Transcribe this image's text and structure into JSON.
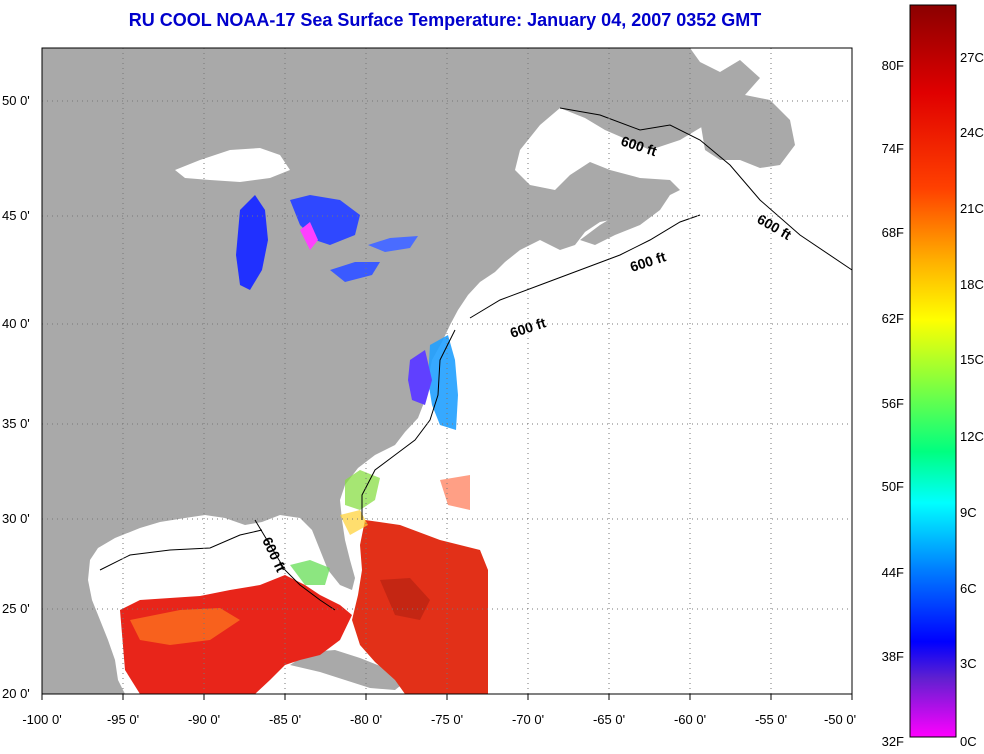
{
  "title": "RU COOL  NOAA-17  Sea Surface Temperature:  January 04, 2007 0352 GMT",
  "lat_labels": [
    "50 0'",
    "45 0'",
    "40 0'",
    "35 0'",
    "30 0'",
    "25 0'",
    "20 0'"
  ],
  "lon_labels": [
    "-100 0'",
    "-95 0'",
    "-90 0'",
    "-85 0'",
    "-80 0'",
    "-75 0'",
    "-70 0'",
    "-65 0'",
    "-60 0'",
    "-55 0'",
    "-50 0'"
  ],
  "contour_labels": [
    "600 ft",
    "600 ft",
    "600 ft",
    "600 ft",
    "600 ft"
  ],
  "colorbar": {
    "fahrenheit": [
      "80F",
      "74F",
      "68F",
      "62F",
      "56F",
      "50F",
      "44F",
      "38F",
      "32F"
    ],
    "celsius": [
      "27C",
      "24C",
      "21C",
      "18C",
      "15C",
      "12C",
      "9C",
      "6C",
      "3C",
      "0C"
    ]
  },
  "colors": {
    "land": "#a9a9a9",
    "ocean_no_data": "#ffffff",
    "title": "#0000cc",
    "warm": "#e8251a",
    "cold": "#2040ff"
  }
}
